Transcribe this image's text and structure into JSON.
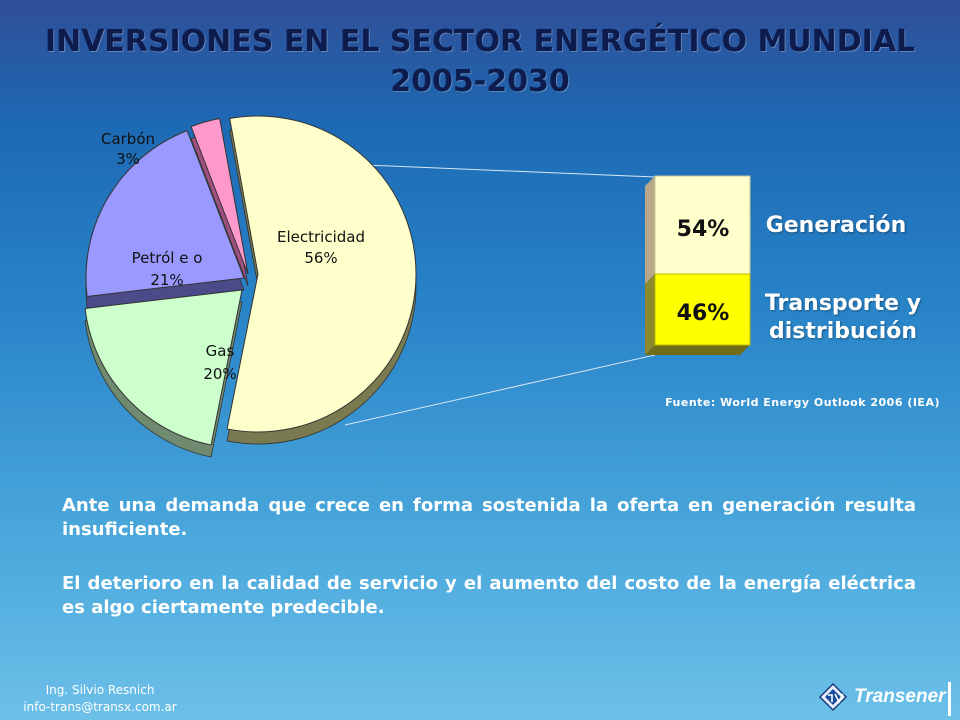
{
  "title": {
    "line1": "INVERSIONES EN EL SECTOR ENERGÉTICO MUNDIAL",
    "line2": "2005-2030"
  },
  "chart_data": [
    {
      "type": "pie",
      "slices": [
        {
          "label": "Electricidad",
          "value": 56,
          "display": "56%",
          "color": "#ffffcc"
        },
        {
          "label": "Gas",
          "value": 20,
          "display": "20%",
          "color": "#ccffcc"
        },
        {
          "label": "Petróleo",
          "value": 21,
          "display": "21%",
          "color": "#9999ff",
          "label_text": "Petról e o"
        },
        {
          "label": "Carbón",
          "value": 3,
          "display": "3%",
          "color": "#ff99cc"
        }
      ]
    },
    {
      "type": "bar",
      "stacked": true,
      "segments": [
        {
          "label": "Generación",
          "value": 54,
          "display": "54%",
          "color": "#ffffcc"
        },
        {
          "label": "Transporte y distribución",
          "value": 46,
          "display": "46%",
          "color": "#ffff00"
        }
      ]
    }
  ],
  "labels": {
    "electricidad": "Electricidad",
    "electricidad_pct": "56%",
    "gas": "Gas",
    "gas_pct": "20%",
    "petroleo": "Petról e o",
    "petroleo_pct": "21%",
    "carbon": "Carbón",
    "carbon_pct": "3%",
    "gen_pct": "54%",
    "td_pct": "46%",
    "generacion": "Generación",
    "transporte_1": "Transporte y",
    "transporte_2": "distribución"
  },
  "source": "Fuente: World Energy Outlook 2006 (IEA)",
  "paragraphs": [
    "Ante una demanda que crece en forma sostenida la oferta en generación resulta insuficiente.",
    "El deterioro en la calidad de servicio y el aumento del costo de la energía eléctrica es algo ciertamente predecible."
  ],
  "footer": {
    "author": "Ing. Silvio Resnich",
    "email": "info-trans@transx.com.ar"
  },
  "logo": {
    "text": "Transener"
  }
}
